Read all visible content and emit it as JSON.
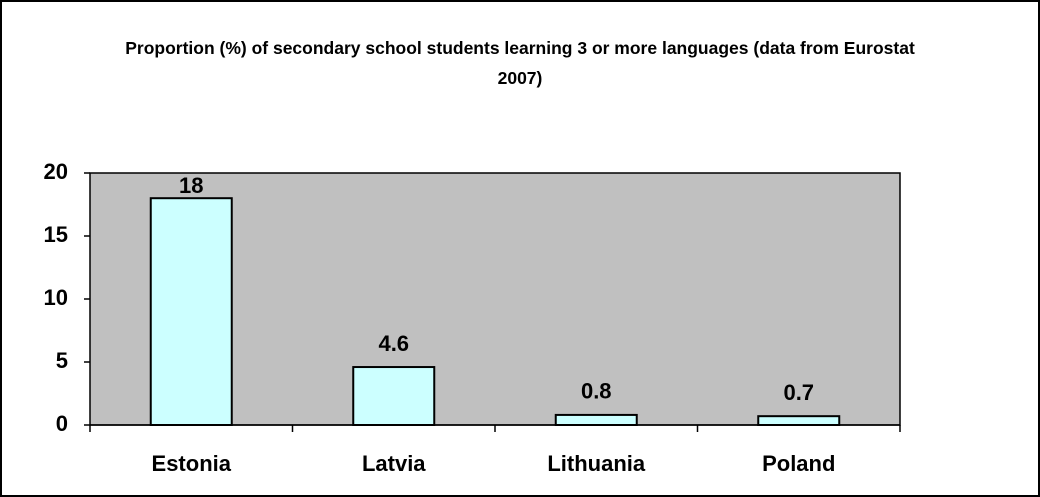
{
  "chart_data": {
    "type": "bar",
    "title": "Proportion (%) of secondary school students learning 3 or more languages (data from Eurostat 2007)",
    "categories": [
      "Estonia",
      "Latvia",
      "Lithuania",
      "Poland"
    ],
    "values": [
      18,
      4.6,
      0.8,
      0.7
    ],
    "color": "#ccffff",
    "plot_background": "#c0c0c0",
    "ylim": [
      0,
      20
    ],
    "yticks": [
      0,
      5,
      10,
      15,
      20
    ],
    "grid": false
  }
}
